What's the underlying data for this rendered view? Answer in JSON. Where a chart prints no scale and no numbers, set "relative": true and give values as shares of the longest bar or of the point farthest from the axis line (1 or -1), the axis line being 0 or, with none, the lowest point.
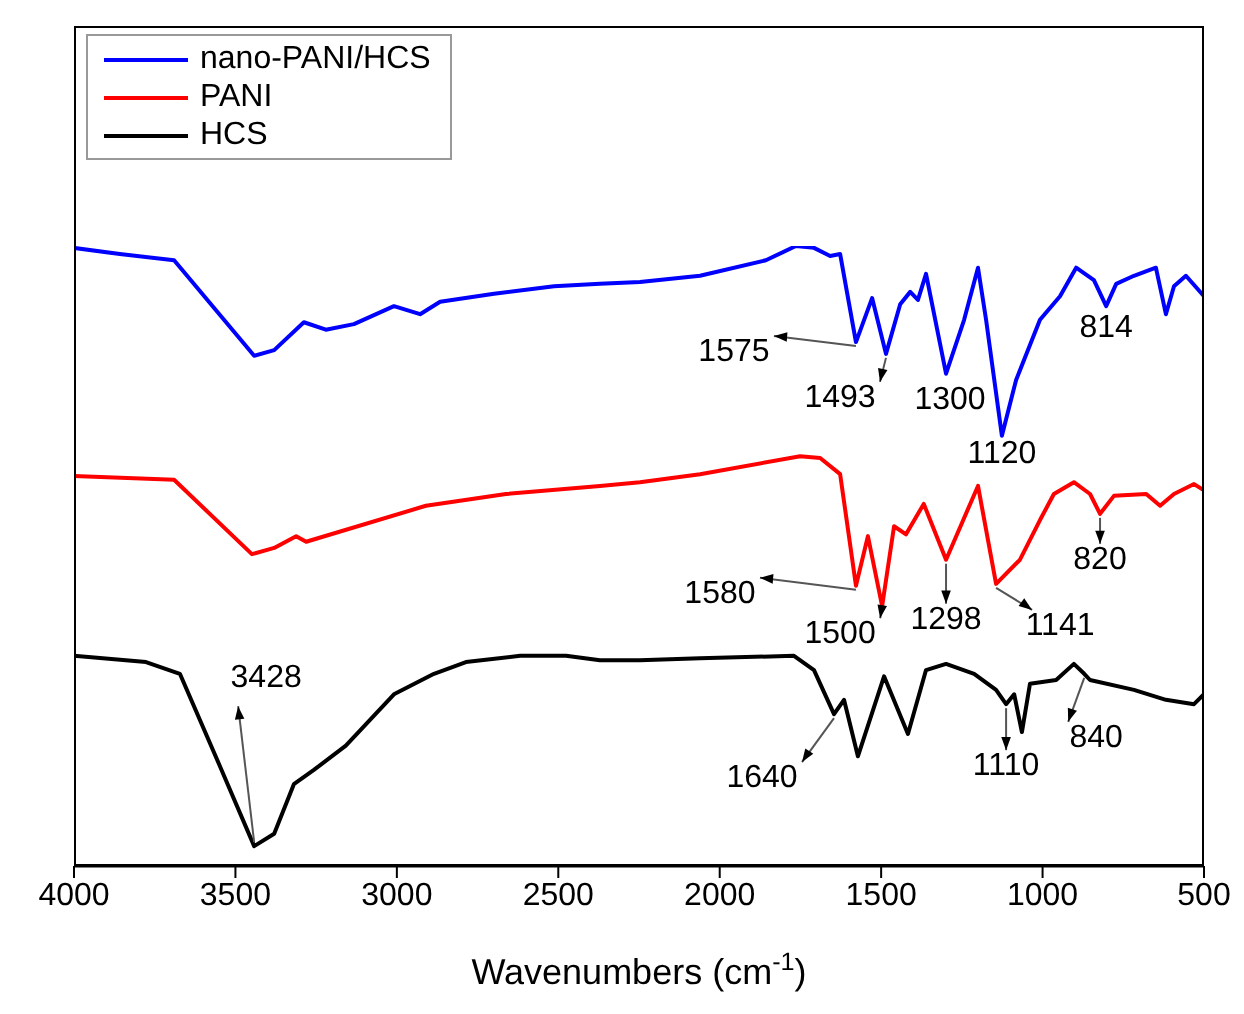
{
  "chart_data": {
    "type": "line",
    "relative": true,
    "xlabel": "Wavenumbers (cm$^{-1}$)",
    "xlim": [
      4000,
      500
    ],
    "xticks": [
      4000,
      3500,
      3000,
      2500,
      2000,
      1500,
      1000,
      500
    ],
    "legend": "top left",
    "grid": false,
    "marker": "none",
    "line_style": "solid",
    "series": [
      {
        "name": "nano-PANI/HCS",
        "color": "#0000ff",
        "x": [
          4000,
          3858,
          3690,
          3442,
          3380,
          3288,
          3220,
          3133,
          3009,
          2928,
          2866,
          2699,
          2513,
          2371,
          2247,
          2061,
          1857,
          1764,
          1708,
          1658,
          1627,
          1578,
          1528,
          1485,
          1441,
          1410,
          1386,
          1361,
          1299,
          1243,
          1200,
          1175,
          1126,
          1082,
          1008,
          946,
          896,
          841,
          803,
          772,
          717,
          649,
          618,
          593,
          556,
          500
        ],
        "values": [
          0.997,
          0.987,
          0.977,
          0.823,
          0.832,
          0.877,
          0.865,
          0.874,
          0.903,
          0.89,
          0.91,
          0.923,
          0.935,
          0.939,
          0.942,
          0.952,
          0.977,
          1.0,
          0.997,
          0.984,
          0.987,
          0.845,
          0.916,
          0.826,
          0.906,
          0.926,
          0.913,
          0.955,
          0.794,
          0.881,
          0.965,
          0.881,
          0.694,
          0.784,
          0.881,
          0.919,
          0.965,
          0.945,
          0.903,
          0.939,
          0.952,
          0.965,
          0.89,
          0.935,
          0.952,
          0.919
        ]
      },
      {
        "name": "PANI",
        "color": "#ff0000",
        "x": [
          4000,
          3690,
          3449,
          3380,
          3312,
          3281,
          2910,
          2662,
          2371,
          2247,
          2061,
          1751,
          1689,
          1627,
          1578,
          1541,
          1497,
          1460,
          1423,
          1368,
          1299,
          1200,
          1144,
          1070,
          1008,
          965,
          903,
          853,
          822,
          779,
          679,
          636,
          593,
          531,
          500
        ],
        "values": [
          0.629,
          0.623,
          0.503,
          0.513,
          0.532,
          0.523,
          0.581,
          0.6,
          0.613,
          0.619,
          0.632,
          0.661,
          0.658,
          0.632,
          0.452,
          0.532,
          0.419,
          0.548,
          0.535,
          0.584,
          0.494,
          0.613,
          0.455,
          0.494,
          0.558,
          0.6,
          0.619,
          0.6,
          0.568,
          0.597,
          0.6,
          0.581,
          0.6,
          0.616,
          0.606
        ]
      },
      {
        "name": "HCS",
        "color": "#000000",
        "x": [
          4000,
          3777,
          3672,
          3548,
          3442,
          3380,
          3319,
          3257,
          3158,
          3009,
          2885,
          2786,
          2618,
          2476,
          2371,
          2247,
          2061,
          1770,
          1708,
          1646,
          1615,
          1572,
          1491,
          1417,
          1361,
          1299,
          1212,
          1144,
          1113,
          1088,
          1064,
          1039,
          958,
          903,
          871,
          853,
          717,
          618,
          531,
          500
        ],
        "values": [
          0.339,
          0.329,
          0.31,
          0.161,
          0.032,
          0.052,
          0.132,
          0.155,
          0.194,
          0.277,
          0.31,
          0.329,
          0.339,
          0.339,
          0.332,
          0.332,
          0.335,
          0.339,
          0.316,
          0.245,
          0.268,
          0.177,
          0.306,
          0.213,
          0.316,
          0.326,
          0.31,
          0.284,
          0.261,
          0.277,
          0.216,
          0.294,
          0.3,
          0.326,
          0.31,
          0.3,
          0.284,
          0.268,
          0.261,
          0.277
        ]
      }
    ],
    "annotations": [
      {
        "text": "1575",
        "x": 1578,
        "y": 0.845
      },
      {
        "text": "1493",
        "x": 1485,
        "y": 0.826
      },
      {
        "text": "1300",
        "x": 1299,
        "y": 0.794
      },
      {
        "text": "1120",
        "x": 1126,
        "y": 0.694
      },
      {
        "text": "814",
        "x": 803,
        "y": 0.903
      },
      {
        "text": "1580",
        "x": 1578,
        "y": 0.452
      },
      {
        "text": "1500",
        "x": 1497,
        "y": 0.419
      },
      {
        "text": "1298",
        "x": 1299,
        "y": 0.494
      },
      {
        "text": "1141",
        "x": 1144,
        "y": 0.455
      },
      {
        "text": "820",
        "x": 822,
        "y": 0.568
      },
      {
        "text": "1640",
        "x": 1646,
        "y": 0.245
      },
      {
        "text": "1110",
        "x": 1113,
        "y": 0.261
      },
      {
        "text": "840",
        "x": 871,
        "y": 0.31
      },
      {
        "text": "3428",
        "x": 3442,
        "y": 0.032
      }
    ]
  }
}
